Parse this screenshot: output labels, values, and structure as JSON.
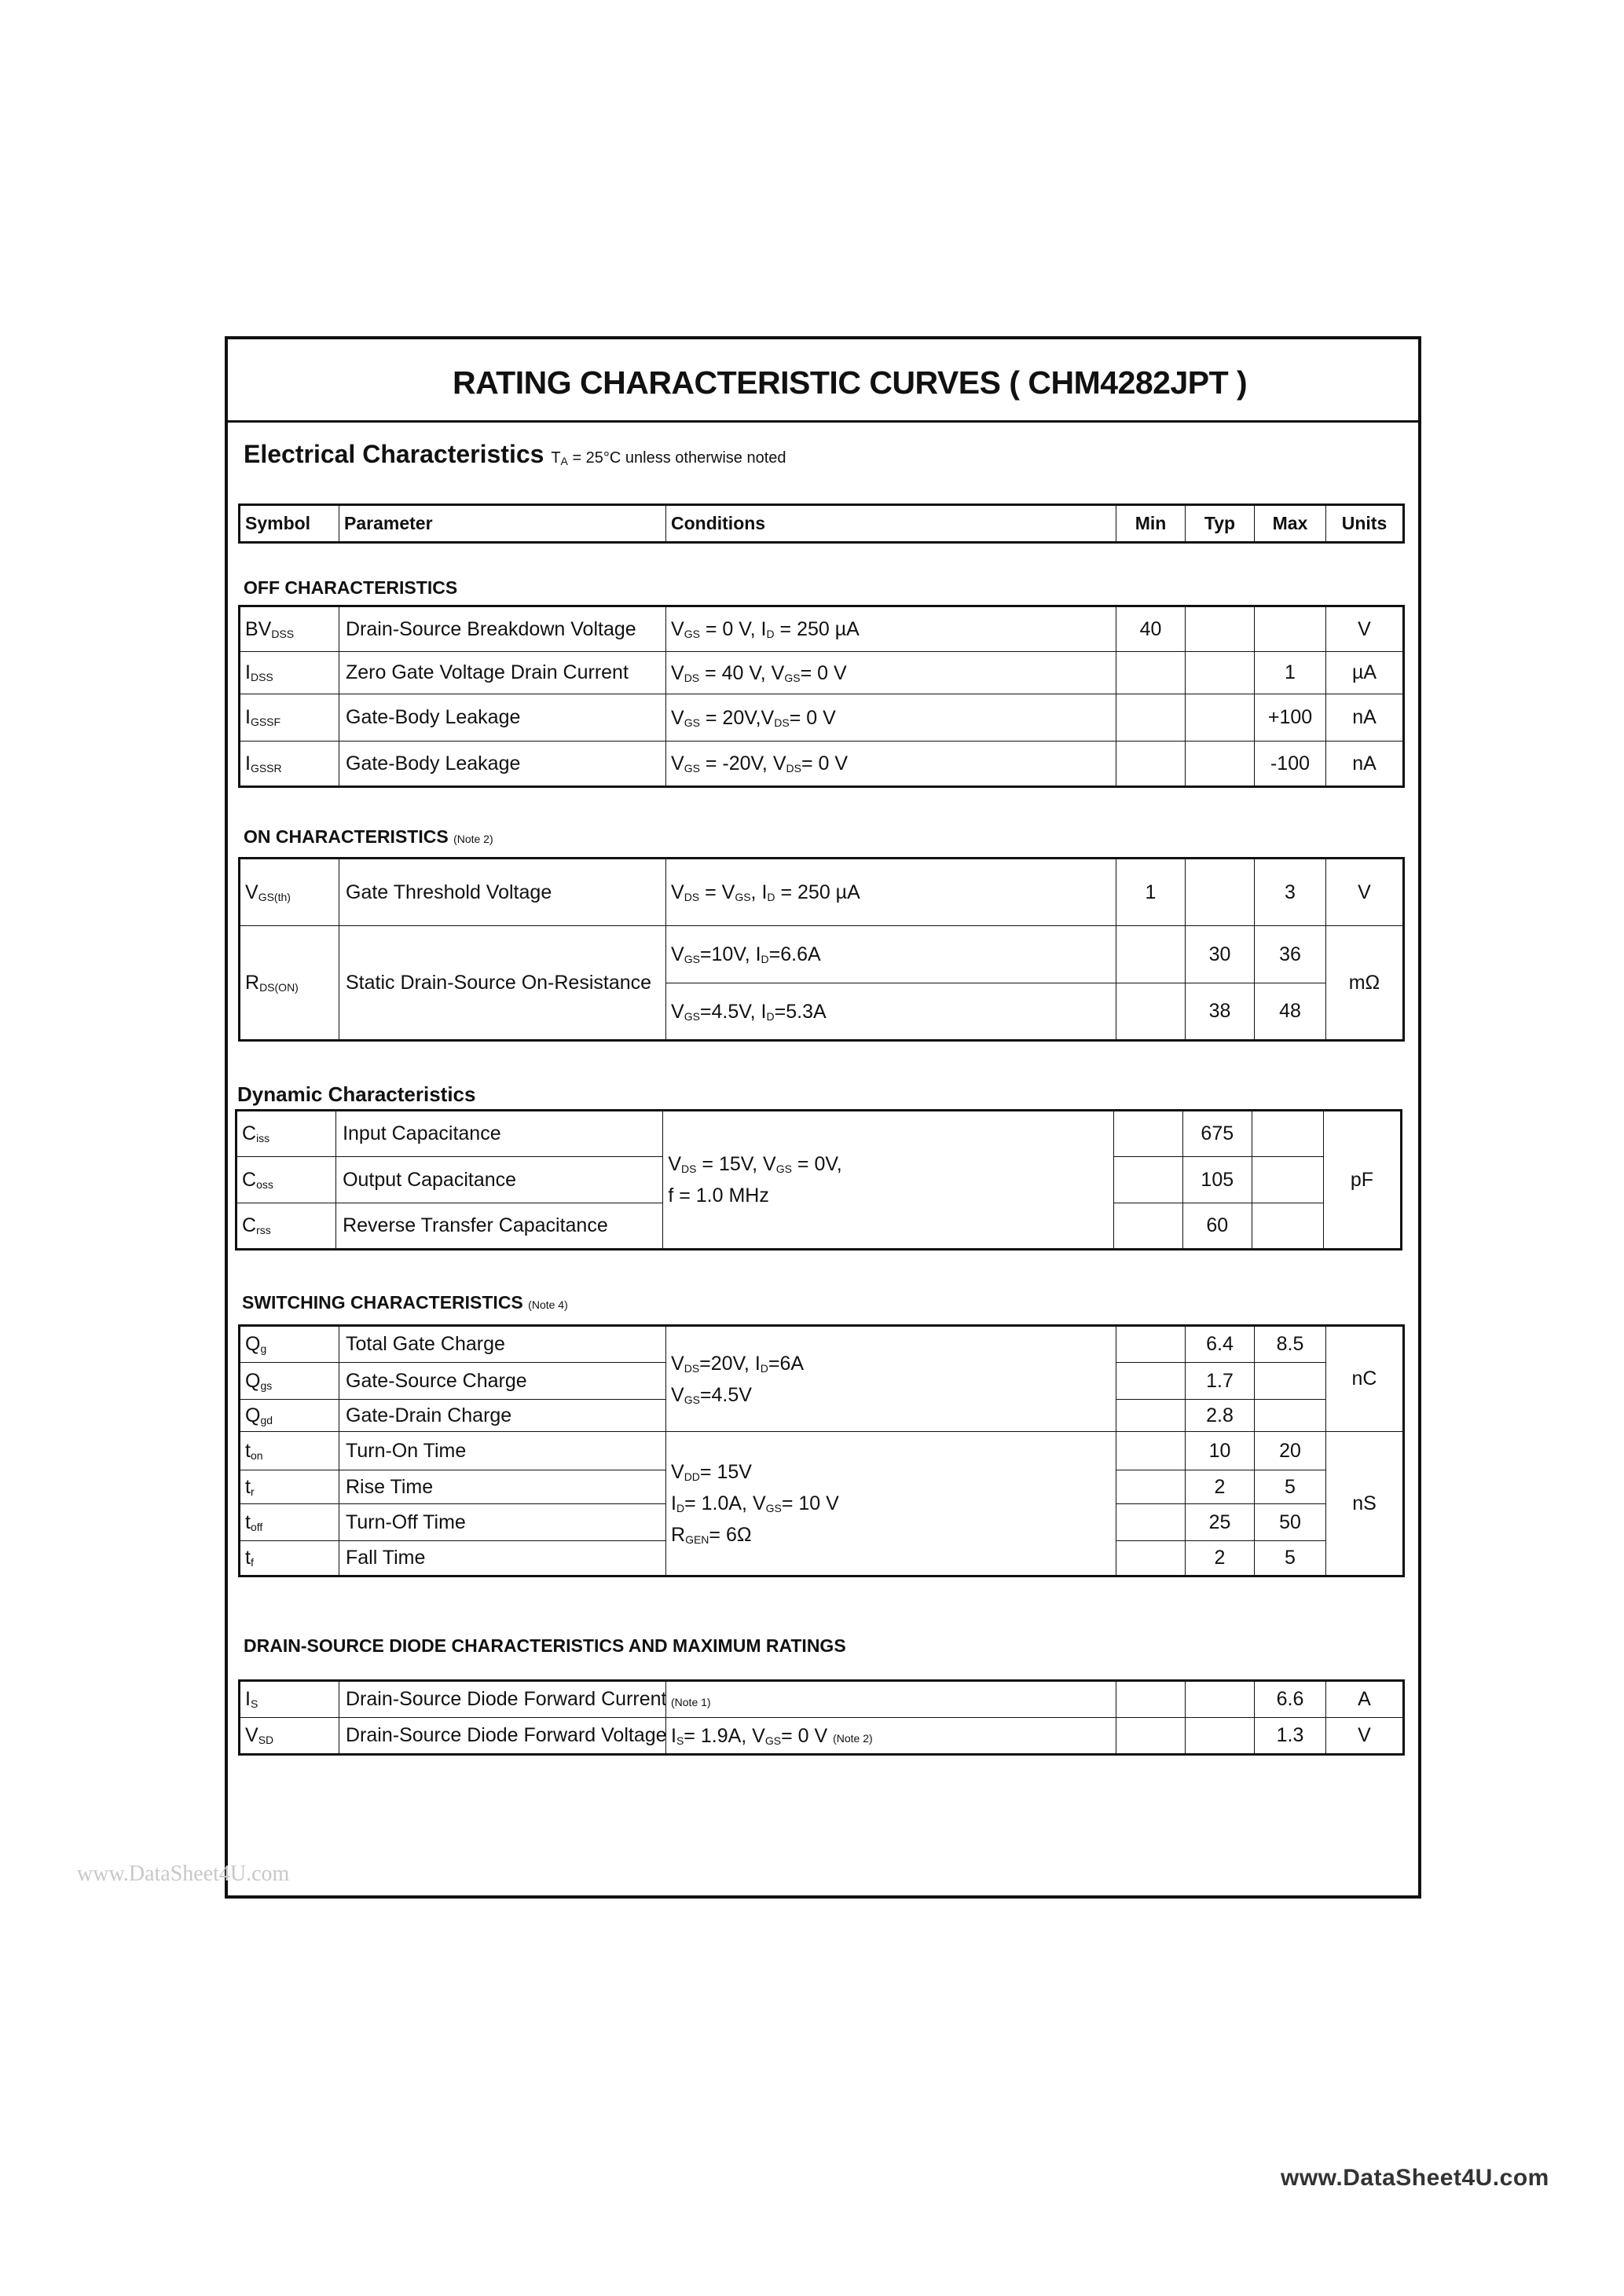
{
  "title": "RATING CHARACTERISTIC CURVES ( CHM4282JPT )",
  "electrical": {
    "heading": "Electrical Characteristics",
    "cond_prefix": "T",
    "cond_sub": "A",
    "cond_rest": " = 25°C unless otherwise noted"
  },
  "header": [
    "Symbol",
    "Parameter",
    "Conditions",
    "Min",
    "Typ",
    "Max",
    "Units"
  ],
  "sections": {
    "off": {
      "label": "OFF CHARACTERISTICS",
      "note": "",
      "rows": [
        {
          "sym": [
            "BV",
            {
              "sub": "DSS"
            }
          ],
          "param": "Drain-Source Breakdown Voltage",
          "cond": [
            [
              "V",
              {
                "sub": "GS"
              },
              " = 0 V, I",
              {
                "sub": "D"
              },
              " = 250 µA"
            ]
          ],
          "min": "40",
          "typ": "",
          "max": "",
          "units": "V"
        },
        {
          "sym": [
            "I",
            {
              "sub": "DSS"
            }
          ],
          "param": "Zero Gate Voltage  Drain Current",
          "cond": [
            [
              "V",
              {
                "sub": "DS"
              },
              " = 40 V,   V",
              {
                "sub": "GS"
              },
              "= 0 V"
            ]
          ],
          "min": "",
          "typ": "",
          "max": "1",
          "units": "µA"
        },
        {
          "sym": [
            "I",
            {
              "sub": "GSSF"
            }
          ],
          "param": "Gate-Body Leakage",
          "cond": [
            [
              "V",
              {
                "sub": "GS"
              },
              " = 20V,V",
              {
                "sub": "DS"
              },
              "= 0 V"
            ]
          ],
          "min": "",
          "typ": "",
          "max": "+100",
          "units": "nA"
        },
        {
          "sym": [
            "I",
            {
              "sub": "GSSR"
            }
          ],
          "param": "Gate-Body Leakage",
          "cond": [
            [
              "V",
              {
                "sub": "GS"
              },
              " = -20V, V",
              {
                "sub": "DS"
              },
              "= 0 V"
            ]
          ],
          "min": "",
          "typ": "",
          "max": "-100",
          "units": "nA"
        }
      ]
    },
    "on": {
      "label": "ON CHARACTERISTICS",
      "note": "(Note 2)",
      "rows": [
        {
          "sym": [
            "V",
            {
              "sub": "GS(th)"
            }
          ],
          "param": "Gate Threshold Voltage",
          "cond": [
            [
              "V",
              {
                "sub": "DS"
              },
              " = V",
              {
                "sub": "GS"
              },
              ", I",
              {
                "sub": "D"
              },
              " = 250 µA"
            ]
          ],
          "min": "1",
          "typ": "",
          "max": "3",
          "units": "V"
        },
        {
          "sym": [
            "R",
            {
              "sub": "DS(ON)"
            }
          ],
          "sym_span": 2,
          "param": "Static Drain-Source On-Resistance",
          "cond": [
            [
              "V",
              {
                "sub": "GS"
              },
              "=10V, I",
              {
                "sub": "D"
              },
              "=6.6A"
            ]
          ],
          "min": "",
          "typ": "30",
          "max": "36",
          "units": "mΩ",
          "units_span": 2
        },
        {
          "cond": [
            [
              "V",
              {
                "sub": "GS"
              },
              "=4.5V, I",
              {
                "sub": "D"
              },
              "=5.3A"
            ]
          ],
          "min": "",
          "typ": "38",
          "max": "48"
        }
      ]
    },
    "dynamic": {
      "label": "Dynamic Characteristics",
      "note": "",
      "rows": [
        {
          "sym": [
            "C",
            {
              "sub": "iss"
            }
          ],
          "param": "Input Capacitance",
          "cond": [
            [
              "V",
              {
                "sub": "DS"
              },
              " = 15V, V",
              {
                "sub": "GS"
              },
              " = 0V,"
            ],
            [
              "f = 1.0 MHz"
            ]
          ],
          "cond_span": 3,
          "min": "",
          "typ": "675",
          "max": "",
          "units": "pF",
          "units_span": 3
        },
        {
          "sym": [
            "C",
            {
              "sub": "oss"
            }
          ],
          "param": "Output Capacitance",
          "min": "",
          "typ": "105",
          "max": ""
        },
        {
          "sym": [
            "C",
            {
              "sub": "rss"
            }
          ],
          "param": "Reverse Transfer Capacitance",
          "min": "",
          "typ": "60",
          "max": ""
        }
      ]
    },
    "switching": {
      "label": "SWITCHING CHARACTERISTICS",
      "note": "(Note 4)",
      "rows": [
        {
          "sym": [
            "Q",
            {
              "sub": "g"
            }
          ],
          "param": "Total Gate Charge",
          "cond": [
            [
              "V",
              {
                "sub": "DS"
              },
              "=20V, I",
              {
                "sub": "D"
              },
              "=6A"
            ],
            [
              "V",
              {
                "sub": "GS"
              },
              "=4.5V"
            ]
          ],
          "cond_span": 3,
          "min": "",
          "typ": "6.4",
          "max": "8.5",
          "units": "nC",
          "units_span": 3
        },
        {
          "sym": [
            "Q",
            {
              "sub": "gs"
            }
          ],
          "param": "Gate-Source Charge",
          "min": "",
          "typ": "1.7",
          "max": ""
        },
        {
          "sym": [
            "Q",
            {
              "sub": "gd"
            }
          ],
          "param": "Gate-Drain Charge",
          "min": "",
          "typ": "2.8",
          "max": ""
        },
        {
          "sym": [
            "t",
            {
              "sub": "on"
            }
          ],
          "param": "Turn-On Time",
          "cond": [
            [
              "V",
              {
                "sub": "DD"
              },
              "= 15V"
            ],
            [
              "I",
              {
                "sub": "D"
              },
              "= 1.0A, V",
              {
                "sub": "GS"
              },
              "= 10 V"
            ],
            [
              "R",
              {
                "sub": "GEN"
              },
              "= 6Ω"
            ]
          ],
          "cond_span": 4,
          "min": "",
          "typ": "10",
          "max": "20",
          "units": "nS",
          "units_span": 4
        },
        {
          "sym": [
            "t",
            {
              "sub": "r"
            }
          ],
          "param": "Rise Time",
          "min": "",
          "typ": "2",
          "max": "5"
        },
        {
          "sym": [
            "t",
            {
              "sub": "off"
            }
          ],
          "param": "Turn-Off Time",
          "min": "",
          "typ": "25",
          "max": "50"
        },
        {
          "sym": [
            "t",
            {
              "sub": "f"
            }
          ],
          "param": "Fall Time",
          "min": "",
          "typ": "2",
          "max": "5"
        }
      ]
    },
    "diode": {
      "label": "DRAIN-SOURCE DIODE CHARACTERISTICS AND MAXIMUM RATINGS",
      "note": "",
      "rows": [
        {
          "sym": [
            "I",
            {
              "sub": "S"
            }
          ],
          "param": "Drain-Source Diode Forward Current",
          "cond": [
            [
              {
                "note": "(Note 1)"
              }
            ]
          ],
          "min": "",
          "typ": "",
          "max": "6.6",
          "units": "A"
        },
        {
          "sym": [
            "V",
            {
              "sub": "SD"
            }
          ],
          "param": "Drain-Source Diode Forward Voltage",
          "cond": [
            [
              "I",
              {
                "sub": "S"
              },
              "= 1.9A, V",
              {
                "sub": "GS"
              },
              "= 0 V  ",
              {
                "note": "(Note 2)"
              }
            ]
          ],
          "min": "",
          "typ": "",
          "max": "1.3",
          "units": "V"
        }
      ]
    }
  },
  "watermark_left": "www.DataSheet4U.com",
  "watermark_right": "www.DataSheet4U.com"
}
